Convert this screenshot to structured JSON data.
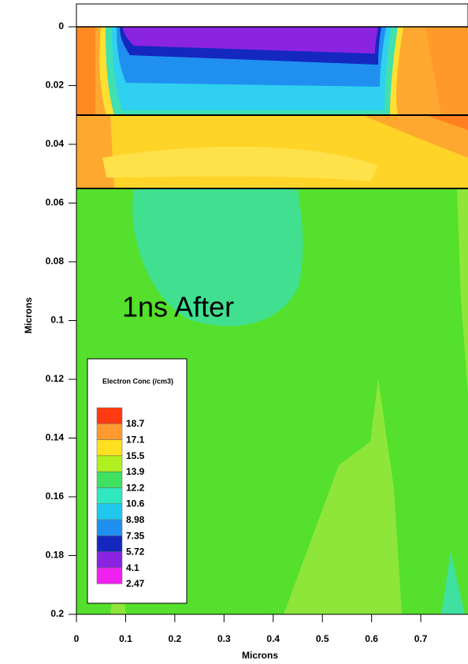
{
  "chart_data": {
    "type": "contour",
    "annotation": "1ns After",
    "xlabel": "Microns",
    "ylabel": "Microns",
    "xlim": [
      0,
      0.796
    ],
    "xticks": [
      0,
      0.1,
      0.2,
      0.3,
      0.4,
      0.5,
      0.6,
      0.7
    ],
    "ylim": [
      0,
      0.2
    ],
    "yticks": [
      0,
      0.02,
      0.04,
      0.06,
      0.08,
      0.1,
      0.12,
      0.14,
      0.16,
      0.18,
      0.2
    ],
    "y_inverted": true,
    "legend": {
      "title": "Electron Conc (/cm3)",
      "levels": [
        18.7,
        17.1,
        15.5,
        13.9,
        12.2,
        10.6,
        8.98,
        7.35,
        5.72,
        4.1,
        2.47
      ],
      "colors": [
        "#ff3a10",
        "#ff9a30",
        "#ffe020",
        "#b0f020",
        "#40e060",
        "#30e8c0",
        "#20c8f0",
        "#2090f0",
        "#1428c0",
        "#8a24e0",
        "#f020f0"
      ]
    }
  }
}
